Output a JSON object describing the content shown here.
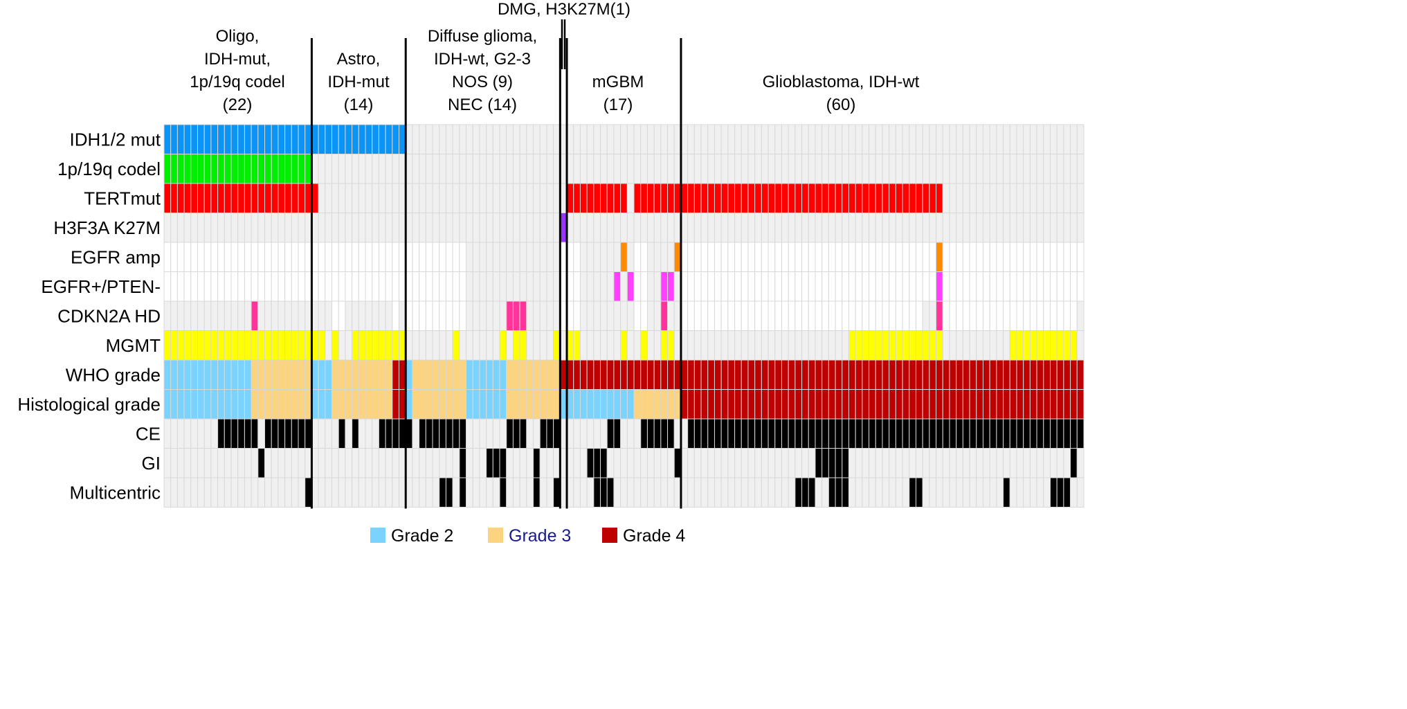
{
  "chart_data": {
    "type": "heatmap",
    "n_samples": 137,
    "groups": [
      {
        "label_lines": [
          "Oligo,",
          "IDH-mut,",
          "1p/19q codel",
          "(22)"
        ],
        "count": 22
      },
      {
        "label_lines": [
          "Astro,",
          "IDH-mut",
          "(14)"
        ],
        "count": 14
      },
      {
        "label_lines": [
          "Diffuse glioma,",
          "IDH-wt, G2-3",
          "NOS (9)",
          "NEC (14)"
        ],
        "count": 23
      },
      {
        "label_lines": [
          "DMG, H3K27M(1)"
        ],
        "count": 1
      },
      {
        "label_lines": [
          "mGBM",
          "(17)"
        ],
        "count": 17
      },
      {
        "label_lines": [
          "Glioblastoma, IDH-wt",
          "(60)"
        ],
        "count": 60
      }
    ],
    "binary_rows": [
      {
        "label": "IDH1/2 mut",
        "color": "#0a94f5",
        "positive": [
          [
            0,
            35
          ]
        ],
        "not_available": []
      },
      {
        "label": "1p/19q codel",
        "color": "#00ee00",
        "positive": [
          [
            0,
            21
          ]
        ],
        "not_available": []
      },
      {
        "label": "TERTmut",
        "color": "#ff0000",
        "positive": [
          [
            0,
            22
          ],
          [
            60,
            68
          ],
          [
            70,
            115
          ]
        ],
        "not_available": []
      },
      {
        "label": "H3F3A K27M",
        "color": "#9933ff",
        "positive": [
          [
            59,
            59
          ]
        ],
        "not_available": []
      },
      {
        "label": "EGFR amp",
        "color": "#ff8c00",
        "positive": [
          [
            68,
            68
          ],
          [
            76,
            76
          ],
          [
            115,
            115
          ]
        ],
        "not_available": [
          [
            0,
            44
          ],
          [
            59,
            61
          ],
          [
            70,
            71
          ],
          [
            77,
            114
          ],
          [
            116,
            136
          ]
        ]
      },
      {
        "label": "EGFR+/PTEN-",
        "color": "#ff40ff",
        "positive": [
          [
            67,
            67
          ],
          [
            69,
            69
          ],
          [
            74,
            75
          ],
          [
            115,
            115
          ]
        ],
        "not_available": [
          [
            0,
            44
          ],
          [
            59,
            61
          ],
          [
            70,
            71
          ],
          [
            77,
            114
          ],
          [
            116,
            136
          ]
        ]
      },
      {
        "label": "CDKN2A HD",
        "color": "#ff3399",
        "positive": [
          [
            13,
            13
          ],
          [
            51,
            53
          ],
          [
            74,
            74
          ],
          [
            115,
            115
          ]
        ],
        "not_available": [
          [
            25,
            26
          ],
          [
            34,
            34
          ],
          [
            36,
            44
          ],
          [
            59,
            61
          ],
          [
            70,
            71
          ],
          [
            77,
            112
          ],
          [
            116,
            135
          ]
        ]
      },
      {
        "label": "MGMT",
        "color": "#ffff00",
        "positive": [
          [
            0,
            23
          ],
          [
            25,
            25
          ],
          [
            28,
            35
          ],
          [
            43,
            43
          ],
          [
            50,
            50
          ],
          [
            52,
            53
          ],
          [
            58,
            58
          ],
          [
            60,
            61
          ],
          [
            68,
            68
          ],
          [
            71,
            71
          ],
          [
            74,
            75
          ],
          [
            102,
            115
          ],
          [
            126,
            135
          ]
        ],
        "not_available": []
      }
    ],
    "grade_rows": [
      {
        "label": "WHO grade",
        "values": [
          2,
          2,
          2,
          2,
          2,
          2,
          2,
          2,
          2,
          2,
          2,
          2,
          2,
          3,
          3,
          3,
          3,
          3,
          3,
          3,
          3,
          3,
          2,
          2,
          2,
          3,
          3,
          3,
          3,
          3,
          3,
          3,
          3,
          3,
          4,
          4,
          2,
          3,
          3,
          3,
          3,
          3,
          3,
          3,
          3,
          2,
          2,
          2,
          2,
          2,
          2,
          3,
          3,
          3,
          3,
          3,
          3,
          3,
          3,
          4,
          4,
          4,
          4,
          4,
          4,
          4,
          4,
          4,
          4,
          4,
          4,
          4,
          4,
          4,
          4,
          4,
          4,
          4,
          4,
          4,
          4,
          4,
          4,
          4,
          4,
          4,
          4,
          4,
          4,
          4,
          4,
          4,
          4,
          4,
          4,
          4,
          4,
          4,
          4,
          4,
          4,
          4,
          4,
          4,
          4,
          4,
          4,
          4,
          4,
          4,
          4,
          4,
          4,
          4,
          4,
          4,
          4,
          4,
          4,
          4,
          4,
          4,
          4,
          4,
          4,
          4,
          4,
          4,
          4,
          4,
          4,
          4,
          4,
          4,
          4,
          4,
          4
        ]
      },
      {
        "label": "Histological grade",
        "values": [
          2,
          2,
          2,
          2,
          2,
          2,
          2,
          2,
          2,
          2,
          2,
          2,
          2,
          3,
          3,
          3,
          3,
          3,
          3,
          3,
          3,
          3,
          2,
          2,
          2,
          3,
          3,
          3,
          3,
          3,
          3,
          3,
          3,
          3,
          4,
          4,
          2,
          3,
          3,
          3,
          3,
          3,
          3,
          3,
          3,
          2,
          2,
          2,
          2,
          2,
          2,
          3,
          3,
          3,
          3,
          3,
          3,
          3,
          3,
          2,
          2,
          2,
          2,
          2,
          2,
          2,
          2,
          2,
          2,
          2,
          3,
          3,
          3,
          3,
          3,
          3,
          3,
          4,
          4,
          4,
          4,
          4,
          4,
          4,
          4,
          4,
          4,
          4,
          4,
          4,
          4,
          4,
          4,
          4,
          4,
          4,
          4,
          4,
          4,
          4,
          4,
          4,
          4,
          4,
          4,
          4,
          4,
          4,
          4,
          4,
          4,
          4,
          4,
          4,
          4,
          4,
          4,
          4,
          4,
          4,
          4,
          4,
          4,
          4,
          4,
          4,
          4,
          4,
          4,
          4,
          4,
          4,
          4,
          4,
          4,
          4,
          4
        ]
      }
    ],
    "black_rows": [
      {
        "label": "CE",
        "color": "#000000",
        "positive": [
          [
            8,
            13
          ],
          [
            15,
            21
          ],
          [
            26,
            26
          ],
          [
            28,
            28
          ],
          [
            32,
            36
          ],
          [
            38,
            44
          ],
          [
            51,
            53
          ],
          [
            56,
            58
          ],
          [
            66,
            67
          ],
          [
            71,
            75
          ],
          [
            78,
            136
          ]
        ]
      },
      {
        "label": "GI",
        "color": "#000000",
        "positive": [
          [
            14,
            14
          ],
          [
            44,
            44
          ],
          [
            48,
            50
          ],
          [
            55,
            55
          ],
          [
            63,
            65
          ],
          [
            76,
            76
          ],
          [
            97,
            101
          ],
          [
            135,
            135
          ]
        ]
      },
      {
        "label": "Multicentric",
        "color": "#000000",
        "positive": [
          [
            21,
            21
          ],
          [
            41,
            42
          ],
          [
            44,
            44
          ],
          [
            50,
            50
          ],
          [
            55,
            55
          ],
          [
            58,
            58
          ],
          [
            64,
            66
          ],
          [
            94,
            96
          ],
          [
            99,
            101
          ],
          [
            111,
            112
          ],
          [
            125,
            125
          ],
          [
            132,
            134
          ]
        ]
      }
    ],
    "colors": {
      "negative": "#f0f0f0",
      "not_available": "#ffffff",
      "grid": "#d8d8d8",
      "divider": "#000000"
    },
    "grade_colors": {
      "2": "#7ad3fc",
      "3": "#fcd37e",
      "4": "#bf0000"
    },
    "legend": {
      "position": "bottom",
      "items": [
        {
          "label": "Grade 2",
          "grade": "2",
          "text_color": "#000000"
        },
        {
          "label": "Grade 3",
          "grade": "3",
          "text_color": "#1a1a8a"
        },
        {
          "label": "Grade 4",
          "grade": "4",
          "text_color": "#000000"
        }
      ]
    }
  }
}
